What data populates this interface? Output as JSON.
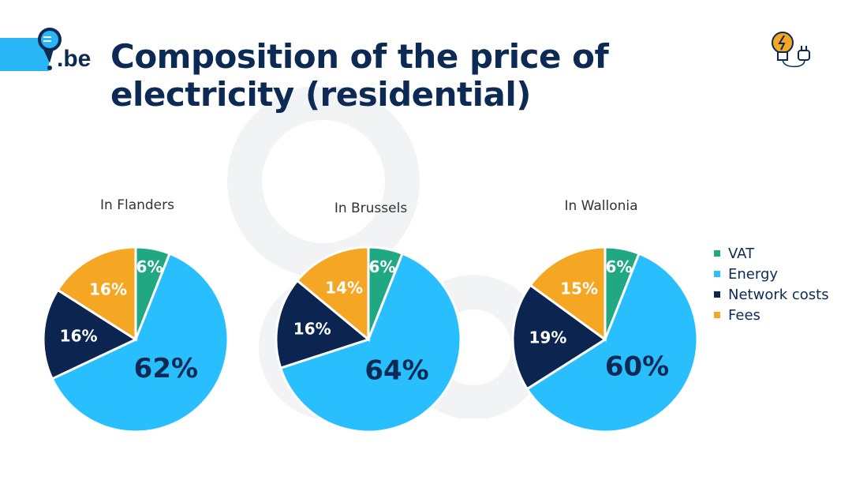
{
  "header": {
    "logo_text": ".be",
    "title_line1": "Composition of the price of",
    "title_line2": "electricity (residential)"
  },
  "colors": {
    "VAT": "#1fa882",
    "Energy": "#29bfff",
    "Network costs": "#0b2550",
    "Fees": "#f5a623",
    "title": "#0c2a54"
  },
  "chart_data": [
    {
      "type": "pie",
      "title": "In Flanders",
      "labels": [
        "VAT",
        "Energy",
        "Network costs",
        "Fees"
      ],
      "values": [
        6,
        62,
        16,
        16
      ]
    },
    {
      "type": "pie",
      "title": "In Brussels",
      "labels": [
        "VAT",
        "Energy",
        "Network costs",
        "Fees"
      ],
      "values": [
        6,
        64,
        16,
        14
      ]
    },
    {
      "type": "pie",
      "title": "In Wallonia",
      "labels": [
        "VAT",
        "Energy",
        "Network costs",
        "Fees"
      ],
      "values": [
        6,
        60,
        19,
        15
      ]
    }
  ],
  "legend": [
    "VAT",
    "Energy",
    "Network costs",
    "Fees"
  ]
}
